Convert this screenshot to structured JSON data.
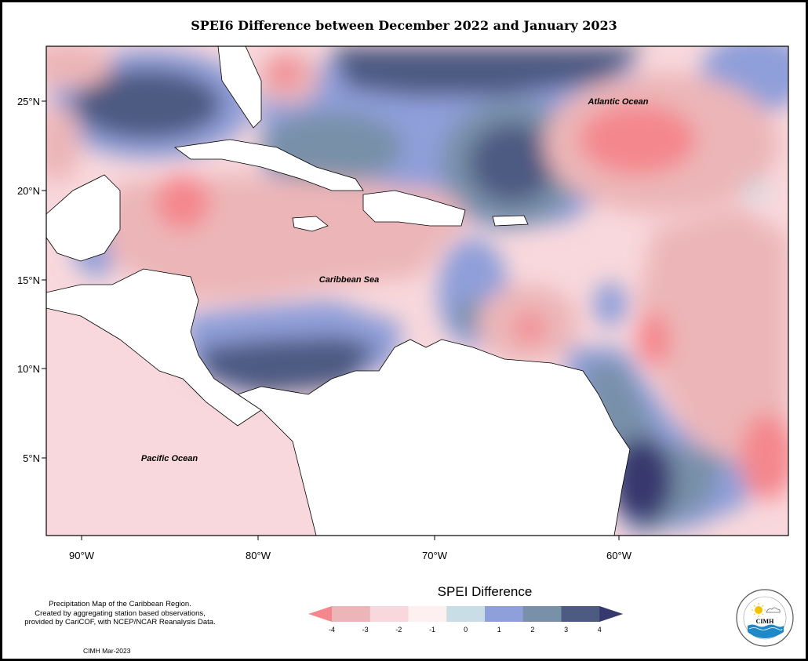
{
  "title": "SPEI6 Difference between December 2022 and January 2023",
  "map": {
    "ocean_labels": [
      {
        "id": "atlantic",
        "text": "Atlantic Ocean"
      },
      {
        "id": "caribbean",
        "text": "Caribbean Sea"
      },
      {
        "id": "pacific",
        "text": "Pacific Ocean"
      }
    ],
    "lat_ticks": [
      "25°N",
      "20°N",
      "15°N",
      "10°N",
      "5°N"
    ],
    "lon_ticks": [
      "90°W",
      "80°W",
      "70°W",
      "60°W"
    ],
    "lat_range": [
      1,
      28
    ],
    "lon_range": [
      -92,
      -50
    ]
  },
  "legend": {
    "title": "SPEI Difference",
    "ticks": [
      "-4",
      "-3",
      "-2",
      "-1",
      "0",
      "1",
      "2",
      "3",
      "4"
    ],
    "colors": [
      "#f4878d",
      "#ecb6b8",
      "#f8d8dc",
      "#fdf0f1",
      "#c8dde6",
      "#8f9fd9",
      "#7890a8",
      "#4d5a82",
      "#37396e"
    ]
  },
  "credits": [
    "Precipitation Map of the Caribbean Region.",
    "Created by aggregating station based observations,",
    "provided by CariCOF, with NCEP/NCAR Reanalysis Data."
  ],
  "stamp": "CIMH Mar-2023",
  "logo": {
    "text": "CIMH"
  }
}
